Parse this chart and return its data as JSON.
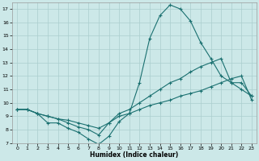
{
  "xlabel": "Humidex (Indice chaleur)",
  "background_color": "#cce8e8",
  "grid_color": "#aacece",
  "line_color": "#1a7070",
  "xlim": [
    -0.5,
    23.5
  ],
  "ylim": [
    7,
    17.5
  ],
  "yticks": [
    7,
    8,
    9,
    10,
    11,
    12,
    13,
    14,
    15,
    16,
    17
  ],
  "xticks": [
    0,
    1,
    2,
    3,
    4,
    5,
    6,
    7,
    8,
    9,
    10,
    11,
    12,
    13,
    14,
    15,
    16,
    17,
    18,
    19,
    20,
    21,
    22,
    23
  ],
  "lines": [
    {
      "x": [
        0,
        1,
        2,
        3,
        4,
        5,
        6,
        7,
        8,
        9,
        10,
        11,
        12,
        13,
        14,
        15,
        16,
        17,
        18,
        19,
        20,
        21,
        22,
        23
      ],
      "y": [
        9.5,
        9.5,
        9.2,
        8.5,
        8.5,
        8.1,
        7.8,
        7.3,
        6.9,
        7.5,
        8.6,
        9.2,
        11.5,
        14.8,
        16.5,
        17.3,
        17.0,
        16.1,
        14.5,
        13.3,
        12.0,
        11.5,
        11.0,
        10.5
      ]
    },
    {
      "x": [
        0,
        1,
        2,
        3,
        4,
        5,
        6,
        7,
        8,
        9,
        10,
        11,
        12,
        13,
        14,
        15,
        16,
        17,
        18,
        19,
        20,
        21,
        22,
        23
      ],
      "y": [
        9.5,
        9.5,
        9.2,
        9.0,
        8.8,
        8.7,
        8.5,
        8.3,
        8.1,
        8.5,
        9.2,
        9.5,
        10.0,
        10.5,
        11.0,
        11.5,
        11.8,
        12.3,
        12.7,
        13.0,
        13.3,
        11.5,
        11.5,
        10.5
      ]
    },
    {
      "x": [
        0,
        1,
        2,
        3,
        4,
        5,
        6,
        7,
        8,
        9,
        10,
        11,
        12,
        13,
        14,
        15,
        16,
        17,
        18,
        19,
        20,
        21,
        22,
        23
      ],
      "y": [
        9.5,
        9.5,
        9.2,
        9.0,
        8.8,
        8.5,
        8.2,
        8.0,
        7.6,
        8.5,
        9.0,
        9.2,
        9.5,
        9.8,
        10.0,
        10.2,
        10.5,
        10.7,
        10.9,
        11.2,
        11.5,
        11.8,
        12.0,
        10.2
      ]
    }
  ]
}
